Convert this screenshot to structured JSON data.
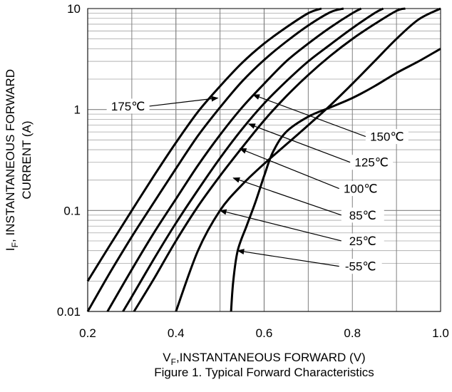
{
  "chart_data": {
    "type": "line",
    "title": "",
    "caption": "Figure 1. Typical Forward Characteristics",
    "xlabel": {
      "main": "V",
      "sub": "F",
      "rest": ",INSTANTANEOUS FORWARD (V)"
    },
    "ylabel": {
      "line1_main": "I",
      "line1_sub": "F",
      "line1_rest": ", INSTANTANEOUS FORWARD",
      "line2": "CURRENT (A)"
    },
    "xlim": [
      0.2,
      1.0
    ],
    "ylim": [
      0.01,
      10
    ],
    "yscale": "log",
    "grid": true,
    "x_ticks": [
      "0.2",
      "0.4",
      "0.6",
      "0.8",
      "1.0"
    ],
    "y_ticks": [
      "0.01",
      "0.1",
      "1",
      "10"
    ],
    "series": [
      {
        "name": "175℃",
        "x": [
          0.2,
          0.25,
          0.3,
          0.35,
          0.4,
          0.45,
          0.5,
          0.55,
          0.6,
          0.65,
          0.7,
          0.73
        ],
        "y": [
          0.02,
          0.045,
          0.1,
          0.22,
          0.47,
          0.95,
          1.7,
          2.9,
          4.5,
          6.5,
          9.0,
          10
        ]
      },
      {
        "name": "150℃",
        "x": [
          0.2,
          0.25,
          0.3,
          0.35,
          0.4,
          0.45,
          0.5,
          0.55,
          0.6,
          0.65,
          0.7,
          0.75,
          0.78
        ],
        "y": [
          0.01,
          0.024,
          0.055,
          0.12,
          0.26,
          0.55,
          1.05,
          1.9,
          3.1,
          4.7,
          6.8,
          9.2,
          10
        ]
      },
      {
        "name": "125℃",
        "x": [
          0.245,
          0.3,
          0.35,
          0.4,
          0.45,
          0.5,
          0.55,
          0.6,
          0.65,
          0.7,
          0.75,
          0.8,
          0.82
        ],
        "y": [
          0.01,
          0.026,
          0.06,
          0.13,
          0.28,
          0.56,
          1.05,
          1.8,
          3.0,
          4.5,
          6.5,
          9.0,
          10
        ]
      },
      {
        "name": "100℃",
        "x": [
          0.28,
          0.3,
          0.35,
          0.4,
          0.45,
          0.5,
          0.55,
          0.6,
          0.65,
          0.7,
          0.75,
          0.8,
          0.85,
          0.87
        ],
        "y": [
          0.01,
          0.014,
          0.033,
          0.075,
          0.16,
          0.33,
          0.64,
          1.15,
          1.9,
          3.0,
          4.4,
          6.4,
          9.0,
          10
        ]
      },
      {
        "name": "85℃",
        "x": [
          0.305,
          0.35,
          0.4,
          0.45,
          0.5,
          0.55,
          0.6,
          0.65,
          0.7,
          0.75,
          0.8,
          0.85,
          0.9,
          0.92
        ],
        "y": [
          0.01,
          0.021,
          0.05,
          0.11,
          0.22,
          0.42,
          0.78,
          1.35,
          2.2,
          3.4,
          5.0,
          7.0,
          9.5,
          10
        ]
      },
      {
        "name": "25℃",
        "x": [
          0.4,
          0.45,
          0.5,
          0.55,
          0.6,
          0.65,
          0.7,
          0.75,
          0.8,
          0.85,
          0.9,
          0.95,
          1.0
        ],
        "y": [
          0.01,
          0.04,
          0.1,
          0.18,
          0.29,
          0.45,
          0.7,
          1.1,
          1.8,
          3.0,
          5.0,
          7.8,
          10
        ]
      },
      {
        "name": "-55℃",
        "x": [
          0.525,
          0.53,
          0.54,
          0.56,
          0.58,
          0.6,
          0.62,
          0.65,
          0.7,
          0.75,
          0.8,
          0.85,
          0.9,
          0.95,
          1.0
        ],
        "y": [
          0.01,
          0.02,
          0.04,
          0.07,
          0.12,
          0.22,
          0.38,
          0.6,
          0.85,
          1.05,
          1.3,
          1.7,
          2.3,
          3.0,
          4.0
        ]
      }
    ],
    "callouts": [
      {
        "series": "175℃",
        "label": "175℃",
        "side": "left",
        "label_x": 0.34,
        "label_y": 1.08,
        "tip_x": 0.495,
        "tip_y": 1.3
      },
      {
        "series": "150℃",
        "label": "150℃",
        "side": "right",
        "label_x": 0.83,
        "label_y": 0.54,
        "tip_x": 0.575,
        "tip_y": 1.4
      },
      {
        "series": "125℃",
        "label": "125℃",
        "side": "right",
        "label_x": 0.795,
        "label_y": 0.3,
        "tip_x": 0.565,
        "tip_y": 0.72
      },
      {
        "series": "100℃",
        "label": "100℃",
        "side": "right",
        "label_x": 0.77,
        "label_y": 0.165,
        "tip_x": 0.545,
        "tip_y": 0.41
      },
      {
        "series": "85℃",
        "label": "85℃",
        "side": "right",
        "label_x": 0.775,
        "label_y": 0.09,
        "tip_x": 0.53,
        "tip_y": 0.21
      },
      {
        "series": "25℃",
        "label": "25℃",
        "side": "right",
        "label_x": 0.775,
        "label_y": 0.05,
        "tip_x": 0.5,
        "tip_y": 0.1
      },
      {
        "series": "-55℃",
        "label": "-55℃",
        "side": "right",
        "label_x": 0.77,
        "label_y": 0.028,
        "tip_x": 0.54,
        "tip_y": 0.04
      }
    ]
  }
}
